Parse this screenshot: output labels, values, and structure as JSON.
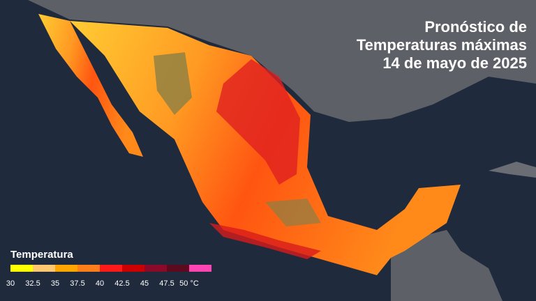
{
  "title": {
    "lines": [
      "Pronóstico de",
      "Temperaturas máximas",
      "14 de mayo de 2025"
    ]
  },
  "legend": {
    "title": "Temperatura",
    "colors": [
      "#ffff00",
      "#ffc870",
      "#ffa500",
      "#ff7f1a",
      "#ff1a1a",
      "#cc0000",
      "#8b0a2a",
      "#5c0a1e",
      "#ff44b4"
    ],
    "ticks": [
      30,
      32.5,
      35,
      37.5,
      40,
      42.5,
      45,
      47.5,
      {
        "value": 50,
        "label": "50 °C"
      }
    ]
  }
}
